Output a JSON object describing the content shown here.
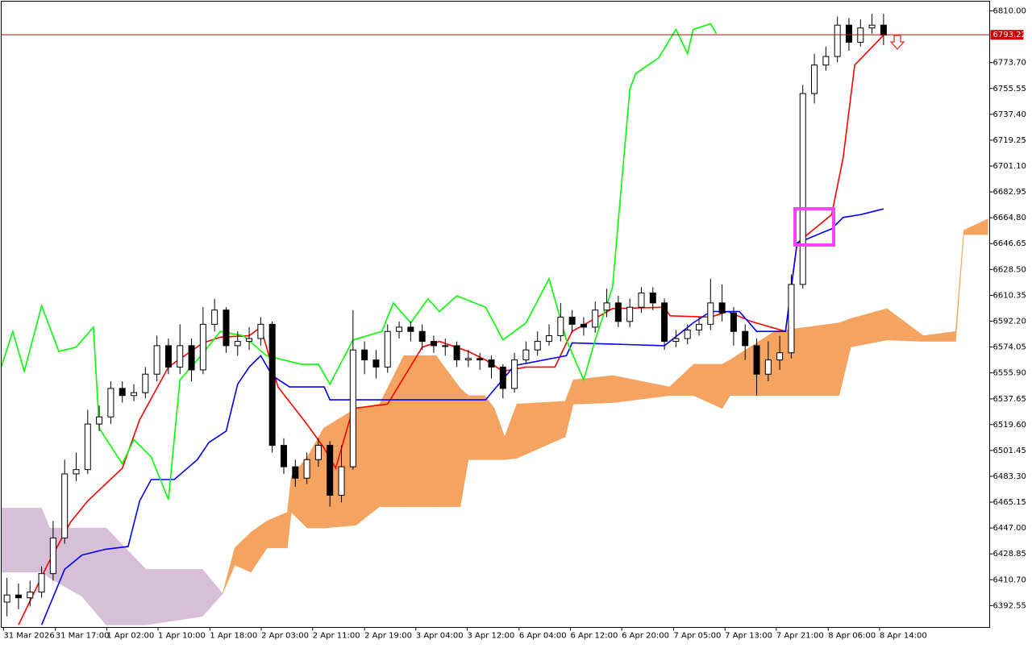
{
  "chart_data": {
    "type": "candlestick",
    "xlim": [
      0,
      171.4
    ],
    "ylim": [
      6377.2,
      6816.8
    ],
    "up_color": "#ffffff",
    "down_color": "#000000",
    "yticks": [
      {
        "value": 6810,
        "label": "6810.00"
      },
      {
        "value": 6773.7,
        "label": "6773.70"
      },
      {
        "value": 6755.55,
        "label": "6755.55"
      },
      {
        "value": 6737.4,
        "label": "6737.40"
      },
      {
        "value": 6719.25,
        "label": "6719.25"
      },
      {
        "value": 6701.1,
        "label": "6701.10"
      },
      {
        "value": 6682.95,
        "label": "6682.95"
      },
      {
        "value": 6664.8,
        "label": "6664.80"
      },
      {
        "value": 6646.65,
        "label": "6646.65"
      },
      {
        "value": 6628.5,
        "label": "6628.50"
      },
      {
        "value": 6610.35,
        "label": "6610.35"
      },
      {
        "value": 6592.2,
        "label": "6592.20"
      },
      {
        "value": 6574.05,
        "label": "6574.05"
      },
      {
        "value": 6555.9,
        "label": "6555.90"
      },
      {
        "value": 6537.65,
        "label": "6537.65"
      },
      {
        "value": 6519.6,
        "label": "6519.60"
      },
      {
        "value": 6501.45,
        "label": "6501.45"
      },
      {
        "value": 6483.3,
        "label": "6483.30"
      },
      {
        "value": 6465.15,
        "label": "6465.15"
      },
      {
        "value": 6447,
        "label": "6447.00"
      },
      {
        "value": 6428.85,
        "label": "6428.85"
      },
      {
        "value": 6410.7,
        "label": "6410.70"
      },
      {
        "value": 6392.55,
        "label": "6392.55"
      }
    ],
    "xticks": [
      {
        "value": 0.4,
        "label": "31 Mar 2026"
      },
      {
        "value": 9.4,
        "label": "31 Mar 17:00"
      },
      {
        "value": 18.3,
        "label": "1 Apr 02:00"
      },
      {
        "value": 27.2,
        "label": "1 Apr 10:00"
      },
      {
        "value": 36.2,
        "label": "1 Apr 18:00"
      },
      {
        "value": 45.1,
        "label": "2 Apr 03:00"
      },
      {
        "value": 54.0,
        "label": "2 Apr 11:00"
      },
      {
        "value": 63.0,
        "label": "2 Apr 19:00"
      },
      {
        "value": 71.9,
        "label": "3 Apr 04:00"
      },
      {
        "value": 80.8,
        "label": "3 Apr 12:00"
      },
      {
        "value": 89.8,
        "label": "6 Apr 04:00"
      },
      {
        "value": 98.7,
        "label": "6 Apr 12:00"
      },
      {
        "value": 107.6,
        "label": "6 Apr 20:00"
      },
      {
        "value": 116.6,
        "label": "7 Apr 05:00"
      },
      {
        "value": 125.5,
        "label": "7 Apr 13:00"
      },
      {
        "value": 134.4,
        "label": "7 Apr 21:00"
      },
      {
        "value": 143.4,
        "label": "8 Apr 06:00"
      },
      {
        "value": 152.3,
        "label": "8 Apr 14:00"
      }
    ],
    "x": [
      1,
      3,
      5,
      7,
      9,
      11,
      13,
      15,
      17,
      19,
      21,
      23,
      25,
      27,
      29,
      31,
      33,
      35,
      37,
      39,
      41,
      43,
      45,
      47,
      49,
      51,
      53,
      55,
      57,
      59,
      61,
      63,
      65,
      67,
      69,
      71,
      73,
      75,
      77,
      79,
      81,
      83,
      85,
      87,
      89,
      91,
      93,
      95,
      97,
      99,
      101,
      103,
      105,
      107,
      109,
      111,
      113,
      115,
      117,
      119,
      121,
      123,
      125,
      127,
      129,
      131,
      133,
      135,
      137,
      139,
      141,
      143,
      145,
      147,
      149,
      151,
      153
    ],
    "open": [
      6395,
      6400,
      6398,
      6402,
      6415,
      6440,
      6485,
      6488,
      6520,
      6525,
      6545,
      6540,
      6542,
      6555,
      6575,
      6560,
      6575,
      6558,
      6590,
      6600,
      6575,
      6578,
      6580,
      6590,
      6505,
      6490,
      6482,
      6495,
      6505,
      6470,
      6490,
      6572,
      6565,
      6560,
      6585,
      6588,
      6585,
      6578,
      6575,
      6575,
      6565,
      6566,
      6565,
      6560,
      6545,
      6565,
      6572,
      6578,
      6582,
      6595,
      6590,
      6588,
      6600,
      6605,
      6592,
      6602,
      6612,
      6605,
      6578,
      6580,
      6586,
      6590,
      6605,
      6598,
      6585,
      6575,
      6555,
      6565,
      6570,
      6618,
      6752,
      6772,
      6778,
      6800,
      6788,
      6798,
      6800
    ],
    "high": [
      6412,
      6408,
      6410,
      6420,
      6452,
      6495,
      6500,
      6530,
      6533,
      6550,
      6550,
      6548,
      6560,
      6582,
      6580,
      6590,
      6580,
      6602,
      6608,
      6602,
      6585,
      6588,
      6595,
      6592,
      6510,
      6495,
      6500,
      6510,
      6508,
      6505,
      6600,
      6578,
      6572,
      6590,
      6592,
      6592,
      6590,
      6582,
      6580,
      6578,
      6572,
      6570,
      6568,
      6562,
      6570,
      6578,
      6585,
      6590,
      6605,
      6600,
      6595,
      6606,
      6615,
      6610,
      6608,
      6616,
      6616,
      6608,
      6586,
      6590,
      6595,
      6622,
      6618,
      6602,
      6590,
      6580,
      6578,
      6582,
      6625,
      6758,
      6780,
      6785,
      6806,
      6805,
      6804,
      6808,
      6808
    ],
    "low": [
      6385,
      6390,
      6392,
      6398,
      6410,
      6436,
      6480,
      6485,
      6515,
      6520,
      6535,
      6536,
      6538,
      6550,
      6555,
      6555,
      6550,
      6555,
      6585,
      6570,
      6568,
      6572,
      6575,
      6500,
      6485,
      6476,
      6478,
      6490,
      6462,
      6465,
      6488,
      6555,
      6552,
      6556,
      6580,
      6578,
      6572,
      6570,
      6568,
      6560,
      6560,
      6558,
      6552,
      6538,
      6542,
      6562,
      6568,
      6575,
      6578,
      6584,
      6582,
      6584,
      6595,
      6588,
      6588,
      6598,
      6600,
      6572,
      6574,
      6576,
      6582,
      6586,
      6592,
      6575,
      6565,
      6540,
      6550,
      6558,
      6566,
      6615,
      6745,
      6768,
      6774,
      6782,
      6785,
      6794,
      6786
    ],
    "close": [
      6400,
      6398,
      6402,
      6415,
      6440,
      6485,
      6488,
      6520,
      6525,
      6545,
      6540,
      6542,
      6555,
      6575,
      6560,
      6575,
      6558,
      6590,
      6600,
      6575,
      6578,
      6580,
      6590,
      6505,
      6490,
      6482,
      6495,
      6505,
      6470,
      6490,
      6572,
      6565,
      6560,
      6585,
      6588,
      6585,
      6578,
      6575,
      6575,
      6565,
      6566,
      6565,
      6560,
      6545,
      6565,
      6572,
      6578,
      6582,
      6595,
      6590,
      6588,
      6600,
      6605,
      6592,
      6602,
      6612,
      6605,
      6578,
      6580,
      6586,
      6590,
      6605,
      6598,
      6585,
      6575,
      6555,
      6565,
      6570,
      6618,
      6752,
      6772,
      6778,
      6800,
      6788,
      6798,
      6800,
      6793
    ],
    "cloud": {
      "up_color": "#f4a460",
      "down_color": "#d8bfd8",
      "x": [
        0,
        7,
        8.4,
        14,
        18.2,
        25.1,
        34.9,
        38.4,
        40.5,
        43.3,
        46.1,
        49.6,
        50.3,
        53.1,
        55.9,
        61.5,
        65.6,
        69.8,
        75.4,
        79.6,
        81,
        83.8,
        85.5,
        87.3,
        89.4,
        97.8,
        99.2,
        106.1,
        115.9,
        120.1,
        125,
        126.4,
        134.1,
        145.3,
        147.3,
        153.6,
        159.9,
        165.5,
        166.9,
        171.1
      ],
      "span_a": [
        6416,
        6416,
        6412,
        6399,
        6379,
        6379,
        6385,
        6401,
        6433,
        6444,
        6452,
        6458,
        6483,
        6497,
        6517,
        6531,
        6534,
        6568,
        6568,
        6545,
        6540,
        6540,
        6531,
        6511,
        6534,
        6536,
        6551,
        6554,
        6546,
        6562,
        6562,
        6565,
        6585,
        6591,
        6594,
        6601,
        6582,
        6585,
        6656,
        6664
      ],
      "span_b": [
        6461,
        6461,
        6447,
        6447,
        6447,
        6418,
        6418,
        6401,
        6421,
        6416,
        6433,
        6433,
        6458,
        6447,
        6447,
        6449,
        6462,
        6462,
        6462,
        6462,
        6495,
        6495,
        6495,
        6495,
        6496,
        6511,
        6534,
        6535,
        6540,
        6540,
        6531,
        6540,
        6540,
        6540,
        6574,
        6579,
        6578,
        6578,
        6653,
        6653
      ]
    },
    "series": [
      {
        "color": "#ff0000",
        "x": [
          3,
          8,
          12,
          15,
          21,
          24,
          29,
          35,
          38,
          43,
          45,
          48,
          53,
          56,
          58,
          61,
          67,
          73,
          76,
          81,
          84,
          87,
          91,
          96,
          99,
          106,
          115,
          116,
          123,
          126,
          130,
          136,
          138,
          144,
          146,
          148,
          153
        ],
        "values": [
          6379,
          6421,
          6451,
          6466,
          6489,
          6523,
          6560,
          6577,
          6581,
          6582,
          6588,
          6546,
          6520,
          6503,
          6489,
          6531,
          6534,
          6574,
          6578,
          6571,
          6565,
          6557,
          6560,
          6560,
          6585,
          6601,
          6602,
          6596,
          6595,
          6599,
          6592,
          6585,
          6647,
          6667,
          6707,
          6772,
          6793
        ]
      },
      {
        "color": "#0000ff",
        "x": [
          7,
          11,
          14,
          18,
          22,
          24,
          26,
          30,
          34,
          36,
          39,
          41,
          43,
          45,
          47,
          50,
          56,
          57,
          67,
          84,
          89,
          98,
          99,
          115,
          120,
          123,
          128,
          131,
          136,
          138,
          144,
          146,
          149,
          153
        ],
        "values": [
          6379,
          6418,
          6428,
          6432,
          6434,
          6466,
          6481,
          6481,
          6495,
          6507,
          6515,
          6548,
          6560,
          6568,
          6554,
          6546,
          6546,
          6537,
          6537,
          6537,
          6561,
          6568,
          6577,
          6575,
          6591,
          6599,
          6599,
          6585,
          6585,
          6647,
          6657,
          6665,
          6667,
          6671
        ]
      },
      {
        "color": "#00ff00",
        "x": [
          0,
          2,
          4,
          7,
          10,
          13,
          16,
          17,
          21,
          23,
          26,
          29,
          31,
          34,
          38,
          42,
          46,
          52,
          55,
          57,
          61,
          66,
          68,
          71,
          74,
          76,
          79,
          84,
          87,
          91,
          95,
          98,
          101,
          103,
          106,
          109,
          110,
          114,
          117,
          119,
          120,
          123,
          124
        ],
        "values": [
          6560,
          6585,
          6557,
          6603,
          6571,
          6574,
          6588,
          6517,
          6492,
          6509,
          6497,
          6467,
          6551,
          6565,
          6585,
          6582,
          6568,
          6562,
          6562,
          6548,
          6579,
          6585,
          6605,
          6591,
          6608,
          6599,
          6610,
          6602,
          6579,
          6591,
          6622,
          6579,
          6551,
          6579,
          6616,
          6755,
          6766,
          6777,
          6797,
          6780,
          6797,
          6801,
          6794
        ]
      }
    ],
    "current_price": {
      "value": 6793.22,
      "color": "#cc0000"
    }
  }
}
